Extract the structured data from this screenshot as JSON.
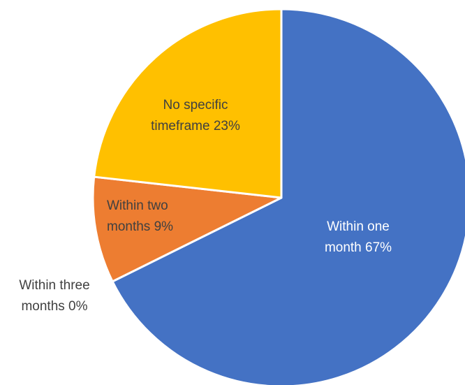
{
  "chart_data": {
    "type": "pie",
    "title": "",
    "legend": "none",
    "start": "12 o'clock, clockwise",
    "slices": [
      {
        "name": "Within one month",
        "value": 67,
        "color": "#4472C4",
        "label_lines": [
          "Within one",
          "month 67%"
        ],
        "label_color": "#ffffff"
      },
      {
        "name": "Within three months",
        "value": 0,
        "color": "#A5A5A5",
        "label_lines": [
          "Within three",
          "months 0%"
        ],
        "label_color": "#404040"
      },
      {
        "name": "Within two months",
        "value": 9,
        "color": "#ED7D31",
        "label_lines": [
          "Within two",
          "months 9%"
        ],
        "label_color": "#404040"
      },
      {
        "name": "No specific timeframe",
        "value": 23,
        "color": "#FFC000",
        "label_lines": [
          "No specific",
          "timeframe 23%"
        ],
        "label_color": "#404040"
      }
    ]
  }
}
